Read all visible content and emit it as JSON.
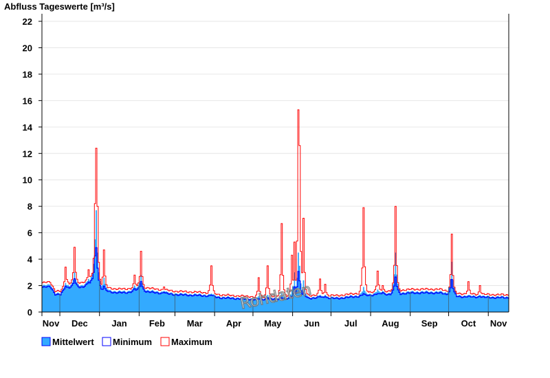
{
  "chart_data": {
    "type": "area",
    "title": "Abfluss Tageswerte [m³/s]",
    "xlabel": "",
    "ylabel": "Abfluss Tageswerte [m³/s]",
    "ylim": [
      0,
      22
    ],
    "yticks": [
      0,
      2,
      4,
      6,
      8,
      10,
      12,
      14,
      16,
      18,
      20,
      22
    ],
    "ytick_labels": [
      "0",
      "2",
      "4",
      "6",
      "8",
      "10",
      "12",
      "14",
      "16",
      "18",
      "20",
      "22"
    ],
    "grid": true,
    "x_days": 365,
    "month_labels": [
      "Nov",
      "Dec",
      "Jan",
      "Feb",
      "Mar",
      "Apr",
      "May",
      "Jun",
      "Jul",
      "Aug",
      "Sep",
      "Oct",
      "Nov"
    ],
    "month_start_days": [
      0,
      14,
      45,
      76,
      104,
      135,
      165,
      196,
      226,
      257,
      288,
      318,
      349
    ],
    "legend_position": "bottom-left",
    "watermark": "Rohdaten",
    "colors": {
      "mean": "#33aaff",
      "min": "#0000ff",
      "max": "#ff0000",
      "grid": "#e6e6e6"
    },
    "baseline_mean": [
      [
        0,
        2.0
      ],
      [
        6,
        2.05
      ],
      [
        10,
        1.45
      ],
      [
        14,
        1.4
      ],
      [
        20,
        2.0
      ],
      [
        30,
        2.0
      ],
      [
        38,
        2.3
      ],
      [
        46,
        1.7
      ],
      [
        55,
        1.6
      ],
      [
        65,
        1.55
      ],
      [
        75,
        1.75
      ],
      [
        85,
        1.6
      ],
      [
        95,
        1.5
      ],
      [
        105,
        1.4
      ],
      [
        120,
        1.35
      ],
      [
        130,
        1.3
      ],
      [
        140,
        1.15
      ],
      [
        150,
        1.1
      ],
      [
        170,
        1.0
      ],
      [
        185,
        1.05
      ],
      [
        200,
        1.1
      ],
      [
        215,
        1.15
      ],
      [
        230,
        1.1
      ],
      [
        245,
        1.25
      ],
      [
        260,
        1.4
      ],
      [
        275,
        1.45
      ],
      [
        290,
        1.55
      ],
      [
        310,
        1.55
      ],
      [
        318,
        1.4
      ],
      [
        325,
        1.25
      ],
      [
        340,
        1.2
      ],
      [
        365,
        1.15
      ]
    ],
    "peaks": [
      {
        "day": 5,
        "max": 2.3,
        "mean": 2.1,
        "min": 1.9
      },
      {
        "day": 18,
        "max": 3.4,
        "mean": 2.2,
        "min": 2.0
      },
      {
        "day": 25,
        "max": 4.9,
        "mean": 3.0,
        "min": 2.6
      },
      {
        "day": 36,
        "max": 3.2,
        "mean": 2.5,
        "min": 2.3
      },
      {
        "day": 41,
        "max": 8.2,
        "mean": 5.5,
        "min": 4.5
      },
      {
        "day": 42,
        "max": 12.4,
        "mean": 7.7,
        "min": 5.2
      },
      {
        "day": 43,
        "max": 8.0,
        "mean": 4.5,
        "min": 3.5
      },
      {
        "day": 48,
        "max": 4.7,
        "mean": 2.6,
        "min": 2.0
      },
      {
        "day": 72,
        "max": 2.8,
        "mean": 2.0,
        "min": 1.8
      },
      {
        "day": 77,
        "max": 4.6,
        "mean": 2.8,
        "min": 2.4
      },
      {
        "day": 95,
        "max": 1.9,
        "mean": 1.6,
        "min": 1.5
      },
      {
        "day": 132,
        "max": 3.5,
        "mean": 1.4,
        "min": 1.3
      },
      {
        "day": 169,
        "max": 2.6,
        "mean": 1.2,
        "min": 1.0
      },
      {
        "day": 176,
        "max": 3.5,
        "mean": 1.3,
        "min": 1.1
      },
      {
        "day": 187,
        "max": 6.7,
        "mean": 1.4,
        "min": 1.1
      },
      {
        "day": 195,
        "max": 4.3,
        "mean": 1.6,
        "min": 1.2
      },
      {
        "day": 197,
        "max": 5.3,
        "mean": 3.0,
        "min": 2.0
      },
      {
        "day": 200,
        "max": 15.3,
        "mean": 4.5,
        "min": 3.3
      },
      {
        "day": 201,
        "max": 12.6,
        "mean": 3.5,
        "min": 2.5
      },
      {
        "day": 204,
        "max": 7.1,
        "mean": 2.4,
        "min": 1.8
      },
      {
        "day": 217,
        "max": 2.5,
        "mean": 1.3,
        "min": 1.2
      },
      {
        "day": 221,
        "max": 2.1,
        "mean": 1.3,
        "min": 1.2
      },
      {
        "day": 251,
        "max": 7.9,
        "mean": 1.9,
        "min": 1.4
      },
      {
        "day": 262,
        "max": 3.1,
        "mean": 1.7,
        "min": 1.4
      },
      {
        "day": 266,
        "max": 2.0,
        "mean": 1.6,
        "min": 1.5
      },
      {
        "day": 276,
        "max": 8.0,
        "mean": 4.5,
        "min": 2.8
      },
      {
        "day": 320,
        "max": 5.9,
        "mean": 3.8,
        "min": 2.6
      },
      {
        "day": 333,
        "max": 2.3,
        "mean": 1.3,
        "min": 1.2
      },
      {
        "day": 342,
        "max": 2.0,
        "mean": 1.3,
        "min": 1.2
      }
    ],
    "series": [
      {
        "name": "Mittelwert",
        "key": "mean"
      },
      {
        "name": "Minimum",
        "key": "min"
      },
      {
        "name": "Maximum",
        "key": "max"
      }
    ]
  }
}
